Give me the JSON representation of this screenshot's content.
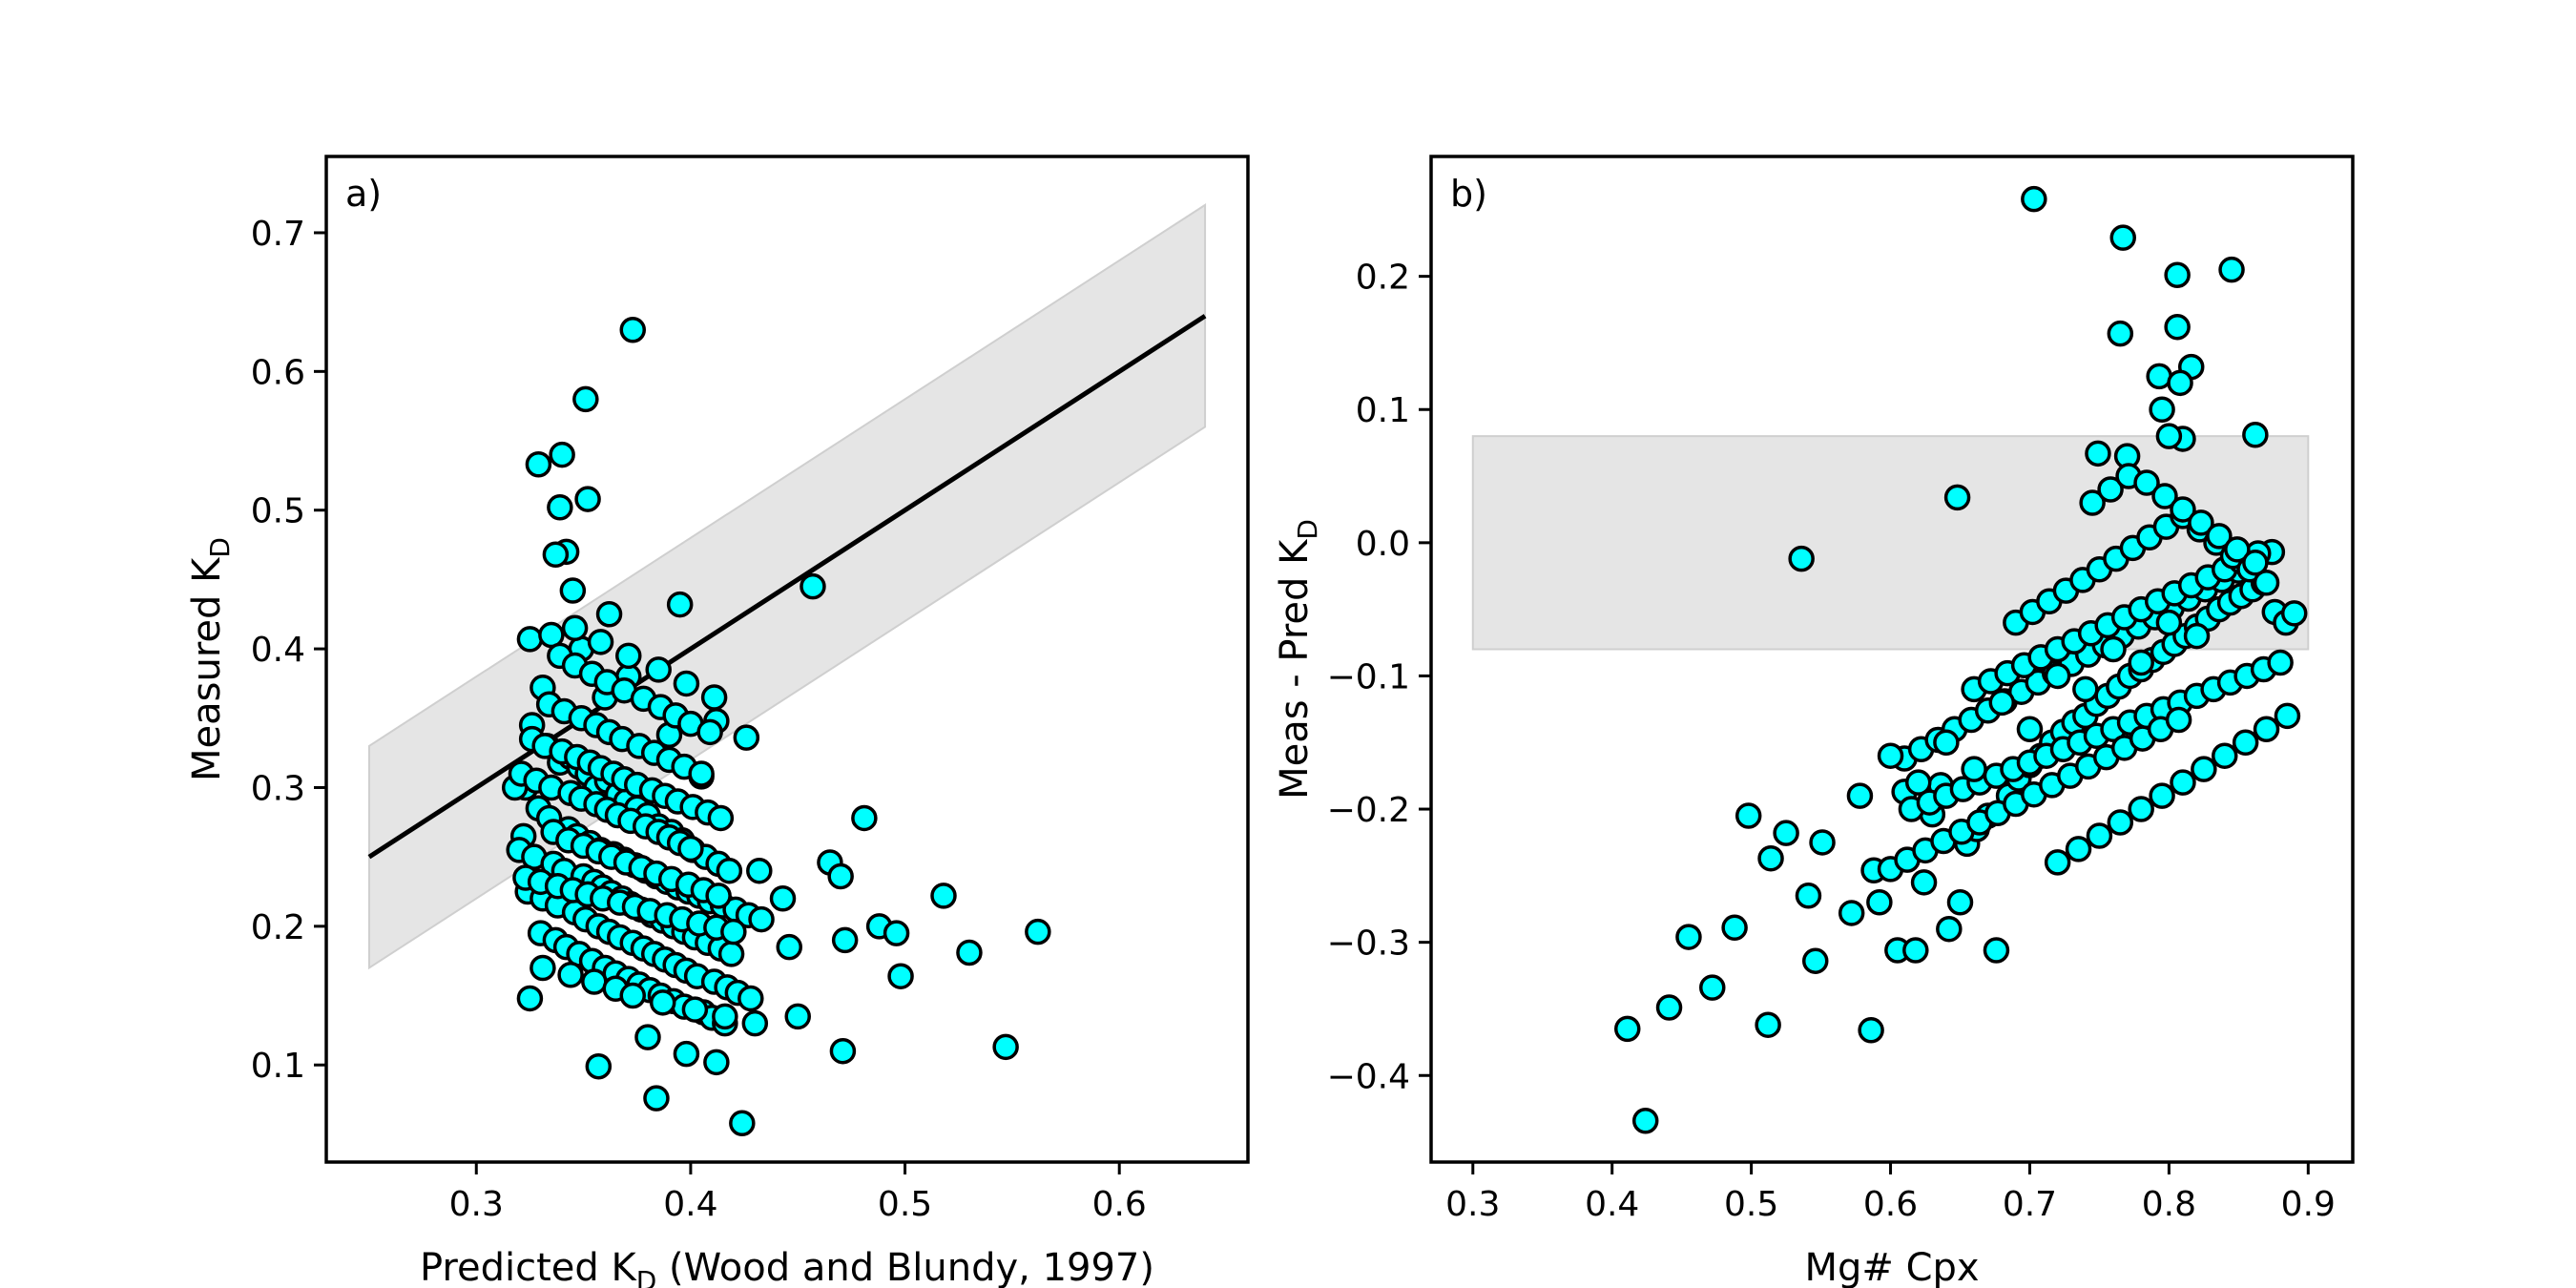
{
  "chart_data": [
    {
      "type": "scatter",
      "panel_label": "a)",
      "xlabel": "Predicted K",
      "xlabel_sub": "D",
      "xlabel_suffix": " (Wood and Blundy, 1997)",
      "ylabel": "Measured K",
      "ylabel_sub": "D",
      "xlim": [
        0.23,
        0.66
      ],
      "ylim": [
        0.03,
        0.755
      ],
      "xticks": [
        0.3,
        0.4,
        0.5,
        0.6
      ],
      "yticks": [
        0.1,
        0.2,
        0.3,
        0.4,
        0.5,
        0.6,
        0.7
      ],
      "xtick_labels": [
        "0.3",
        "0.4",
        "0.5",
        "0.6"
      ],
      "ytick_labels": [
        "0.1",
        "0.2",
        "0.3",
        "0.4",
        "0.5",
        "0.6",
        "0.7"
      ],
      "grid": false,
      "colors": {
        "marker": "#00ffff",
        "edge": "#000000",
        "band": "#e5e5e5",
        "line": "#000000"
      },
      "reference_line": {
        "x": [
          0.25,
          0.64
        ],
        "y": [
          0.25,
          0.64
        ]
      },
      "band": {
        "x": [
          0.25,
          0.64
        ],
        "lower": [
          0.17,
          0.56
        ],
        "upper": [
          0.33,
          0.72
        ]
      },
      "x": [
        0.373,
        0.351,
        0.34,
        0.329,
        0.352,
        0.339,
        0.342,
        0.337,
        0.395,
        0.457,
        0.325,
        0.335,
        0.345,
        0.362,
        0.371,
        0.349,
        0.412,
        0.426,
        0.36,
        0.331,
        0.39,
        0.405,
        0.326,
        0.323,
        0.318,
        0.481,
        0.465,
        0.47,
        0.432,
        0.443,
        0.518,
        0.562,
        0.488,
        0.496,
        0.53,
        0.498,
        0.446,
        0.472,
        0.45,
        0.547,
        0.471,
        0.424,
        0.384,
        0.357,
        0.38,
        0.398,
        0.412,
        0.325,
        0.322,
        0.333,
        0.339,
        0.344,
        0.348,
        0.352,
        0.356,
        0.361,
        0.366,
        0.37,
        0.375,
        0.38,
        0.385,
        0.391,
        0.396,
        0.401,
        0.407,
        0.413,
        0.418,
        0.329,
        0.334,
        0.343,
        0.347,
        0.353,
        0.358,
        0.364,
        0.369,
        0.374,
        0.379,
        0.384,
        0.389,
        0.394,
        0.399,
        0.404,
        0.409,
        0.415,
        0.421,
        0.427,
        0.433,
        0.32,
        0.327,
        0.336,
        0.341,
        0.35,
        0.355,
        0.359,
        0.363,
        0.368,
        0.372,
        0.377,
        0.382,
        0.387,
        0.392,
        0.397,
        0.402,
        0.408,
        0.414,
        0.419,
        0.324,
        0.331,
        0.338,
        0.346,
        0.351,
        0.357,
        0.362,
        0.367,
        0.373,
        0.378,
        0.383,
        0.388,
        0.393,
        0.398,
        0.403,
        0.411,
        0.417,
        0.422,
        0.428,
        0.33,
        0.337,
        0.342,
        0.348,
        0.354,
        0.36,
        0.365,
        0.371,
        0.376,
        0.381,
        0.386,
        0.392,
        0.397,
        0.406,
        0.41,
        0.416,
        0.321,
        0.328,
        0.335,
        0.344,
        0.349,
        0.356,
        0.361,
        0.366,
        0.372,
        0.379,
        0.385,
        0.39,
        0.395,
        0.4,
        0.326,
        0.332,
        0.34,
        0.347,
        0.353,
        0.358,
        0.364,
        0.369,
        0.375,
        0.382,
        0.388,
        0.394,
        0.401,
        0.408,
        0.414,
        0.323,
        0.33,
        0.338,
        0.345,
        0.352,
        0.359,
        0.367,
        0.374,
        0.381,
        0.389,
        0.396,
        0.404,
        0.412,
        0.42,
        0.336,
        0.343,
        0.35,
        0.357,
        0.363,
        0.37,
        0.377,
        0.384,
        0.391,
        0.399,
        0.406,
        0.413,
        0.334,
        0.341,
        0.349,
        0.356,
        0.362,
        0.368,
        0.376,
        0.383,
        0.39,
        0.397,
        0.405,
        0.339,
        0.346,
        0.354,
        0.361,
        0.369,
        0.378,
        0.386,
        0.393,
        0.4,
        0.409,
        0.331,
        0.344,
        0.355,
        0.365,
        0.373,
        0.387,
        0.402,
        0.416,
        0.43,
        0.346,
        0.358,
        0.371,
        0.385,
        0.398,
        0.411
      ],
      "y": [
        0.63,
        0.58,
        0.54,
        0.533,
        0.508,
        0.502,
        0.47,
        0.468,
        0.432,
        0.445,
        0.407,
        0.41,
        0.442,
        0.425,
        0.38,
        0.4,
        0.348,
        0.336,
        0.365,
        0.372,
        0.338,
        0.308,
        0.345,
        0.3,
        0.3,
        0.278,
        0.246,
        0.236,
        0.24,
        0.22,
        0.222,
        0.196,
        0.2,
        0.195,
        0.181,
        0.164,
        0.185,
        0.19,
        0.135,
        0.113,
        0.11,
        0.058,
        0.076,
        0.099,
        0.12,
        0.108,
        0.102,
        0.148,
        0.265,
        0.33,
        0.318,
        0.322,
        0.315,
        0.31,
        0.3,
        0.305,
        0.295,
        0.29,
        0.285,
        0.28,
        0.272,
        0.268,
        0.262,
        0.255,
        0.25,
        0.245,
        0.24,
        0.285,
        0.278,
        0.27,
        0.265,
        0.26,
        0.255,
        0.252,
        0.248,
        0.244,
        0.24,
        0.236,
        0.232,
        0.228,
        0.225,
        0.222,
        0.218,
        0.215,
        0.212,
        0.208,
        0.205,
        0.255,
        0.25,
        0.245,
        0.24,
        0.236,
        0.232,
        0.228,
        0.224,
        0.22,
        0.216,
        0.212,
        0.208,
        0.204,
        0.2,
        0.196,
        0.192,
        0.188,
        0.184,
        0.18,
        0.225,
        0.22,
        0.215,
        0.21,
        0.205,
        0.2,
        0.196,
        0.192,
        0.188,
        0.184,
        0.18,
        0.176,
        0.172,
        0.168,
        0.164,
        0.16,
        0.156,
        0.152,
        0.148,
        0.195,
        0.19,
        0.185,
        0.18,
        0.175,
        0.17,
        0.166,
        0.162,
        0.158,
        0.154,
        0.15,
        0.146,
        0.142,
        0.138,
        0.134,
        0.13,
        0.31,
        0.305,
        0.3,
        0.296,
        0.292,
        0.288,
        0.284,
        0.28,
        0.276,
        0.272,
        0.268,
        0.264,
        0.26,
        0.256,
        0.335,
        0.33,
        0.326,
        0.322,
        0.318,
        0.314,
        0.31,
        0.306,
        0.302,
        0.298,
        0.294,
        0.29,
        0.286,
        0.282,
        0.278,
        0.235,
        0.232,
        0.229,
        0.226,
        0.223,
        0.22,
        0.217,
        0.214,
        0.211,
        0.208,
        0.205,
        0.202,
        0.199,
        0.196,
        0.268,
        0.262,
        0.258,
        0.254,
        0.25,
        0.246,
        0.242,
        0.238,
        0.234,
        0.23,
        0.226,
        0.222,
        0.36,
        0.355,
        0.35,
        0.345,
        0.34,
        0.335,
        0.33,
        0.325,
        0.32,
        0.315,
        0.31,
        0.395,
        0.388,
        0.382,
        0.376,
        0.37,
        0.364,
        0.358,
        0.352,
        0.346,
        0.34,
        0.17,
        0.165,
        0.16,
        0.155,
        0.15,
        0.145,
        0.14,
        0.135,
        0.13,
        0.415,
        0.405,
        0.395,
        0.385,
        0.375,
        0.365
      ]
    },
    {
      "type": "scatter",
      "panel_label": "b)",
      "xlabel": "Mg# Cpx",
      "ylabel": "Meas - Pred K",
      "ylabel_sub": "D",
      "xlim": [
        0.27,
        0.932
      ],
      "ylim": [
        -0.465,
        0.29
      ],
      "xticks": [
        0.3,
        0.4,
        0.5,
        0.6,
        0.7,
        0.8,
        0.9
      ],
      "yticks": [
        -0.4,
        -0.3,
        -0.2,
        -0.1,
        0.0,
        0.1,
        0.2
      ],
      "xtick_labels": [
        "0.3",
        "0.4",
        "0.5",
        "0.6",
        "0.7",
        "0.8",
        "0.9"
      ],
      "ytick_labels": [
        "−0.4",
        "−0.3",
        "−0.2",
        "−0.1",
        "0.0",
        "0.1",
        "0.2"
      ],
      "grid": false,
      "colors": {
        "marker": "#00ffff",
        "edge": "#000000",
        "band": "#e5e5e5"
      },
      "band": {
        "x": [
          0.3,
          0.9
        ],
        "lower": [
          -0.08,
          -0.08
        ],
        "upper": [
          0.08,
          0.08
        ]
      },
      "x": [
        0.703,
        0.767,
        0.845,
        0.806,
        0.806,
        0.765,
        0.816,
        0.793,
        0.808,
        0.81,
        0.862,
        0.795,
        0.8,
        0.749,
        0.77,
        0.648,
        0.536,
        0.411,
        0.424,
        0.441,
        0.455,
        0.472,
        0.488,
        0.498,
        0.512,
        0.514,
        0.525,
        0.541,
        0.546,
        0.551,
        0.572,
        0.578,
        0.586,
        0.588,
        0.592,
        0.605,
        0.61,
        0.618,
        0.624,
        0.63,
        0.636,
        0.642,
        0.65,
        0.655,
        0.662,
        0.67,
        0.676,
        0.685,
        0.692,
        0.7,
        0.708,
        0.716,
        0.724,
        0.732,
        0.74,
        0.748,
        0.756,
        0.764,
        0.772,
        0.78,
        0.788,
        0.796,
        0.804,
        0.812,
        0.82,
        0.828,
        0.836,
        0.844,
        0.852,
        0.86,
        0.868,
        0.876,
        0.884,
        0.89,
        0.61,
        0.622,
        0.634,
        0.646,
        0.658,
        0.67,
        0.682,
        0.694,
        0.706,
        0.718,
        0.73,
        0.742,
        0.754,
        0.766,
        0.778,
        0.79,
        0.802,
        0.814,
        0.826,
        0.838,
        0.85,
        0.862,
        0.874,
        0.615,
        0.628,
        0.64,
        0.652,
        0.664,
        0.676,
        0.688,
        0.7,
        0.712,
        0.724,
        0.736,
        0.748,
        0.76,
        0.772,
        0.784,
        0.796,
        0.808,
        0.82,
        0.832,
        0.844,
        0.856,
        0.868,
        0.88,
        0.66,
        0.672,
        0.684,
        0.696,
        0.708,
        0.72,
        0.732,
        0.744,
        0.756,
        0.768,
        0.78,
        0.792,
        0.804,
        0.816,
        0.828,
        0.84,
        0.852,
        0.864,
        0.69,
        0.702,
        0.714,
        0.726,
        0.738,
        0.75,
        0.762,
        0.774,
        0.786,
        0.798,
        0.81,
        0.822,
        0.834,
        0.846,
        0.858,
        0.87,
        0.72,
        0.735,
        0.75,
        0.765,
        0.78,
        0.795,
        0.81,
        0.825,
        0.84,
        0.855,
        0.87,
        0.885,
        0.6,
        0.612,
        0.625,
        0.638,
        0.651,
        0.664,
        0.677,
        0.69,
        0.703,
        0.716,
        0.729,
        0.742,
        0.755,
        0.768,
        0.781,
        0.794,
        0.807,
        0.745,
        0.758,
        0.771,
        0.784,
        0.797,
        0.81,
        0.823,
        0.836,
        0.849,
        0.862,
        0.6,
        0.62,
        0.64,
        0.66,
        0.68,
        0.7,
        0.72,
        0.74,
        0.76,
        0.78,
        0.8,
        0.82
      ],
      "y": [
        0.258,
        0.229,
        0.205,
        0.201,
        0.162,
        0.157,
        0.132,
        0.125,
        0.12,
        0.078,
        0.081,
        0.1,
        0.08,
        0.067,
        0.065,
        0.034,
        -0.012,
        -0.365,
        -0.434,
        -0.349,
        -0.296,
        -0.334,
        -0.289,
        -0.205,
        -0.362,
        -0.237,
        -0.218,
        -0.265,
        -0.314,
        -0.225,
        -0.278,
        -0.19,
        -0.366,
        -0.246,
        -0.27,
        -0.306,
        -0.187,
        -0.306,
        -0.255,
        -0.204,
        -0.182,
        -0.29,
        -0.27,
        -0.226,
        -0.215,
        -0.205,
        -0.306,
        -0.19,
        -0.177,
        -0.167,
        -0.16,
        -0.15,
        -0.142,
        -0.135,
        -0.13,
        -0.121,
        -0.115,
        -0.108,
        -0.1,
        -0.095,
        -0.088,
        -0.082,
        -0.076,
        -0.07,
        -0.063,
        -0.057,
        -0.05,
        -0.045,
        -0.04,
        -0.035,
        -0.03,
        -0.052,
        -0.06,
        -0.053,
        -0.162,
        -0.155,
        -0.148,
        -0.14,
        -0.133,
        -0.126,
        -0.119,
        -0.112,
        -0.105,
        -0.098,
        -0.091,
        -0.084,
        -0.077,
        -0.07,
        -0.063,
        -0.056,
        -0.049,
        -0.042,
        -0.035,
        -0.028,
        -0.021,
        -0.014,
        -0.007,
        -0.2,
        -0.195,
        -0.19,
        -0.185,
        -0.18,
        -0.175,
        -0.17,
        -0.165,
        -0.16,
        -0.155,
        -0.15,
        -0.145,
        -0.14,
        -0.135,
        -0.13,
        -0.125,
        -0.12,
        -0.115,
        -0.11,
        -0.105,
        -0.1,
        -0.095,
        -0.09,
        -0.11,
        -0.104,
        -0.098,
        -0.092,
        -0.086,
        -0.08,
        -0.074,
        -0.068,
        -0.062,
        -0.056,
        -0.05,
        -0.044,
        -0.038,
        -0.032,
        -0.026,
        -0.02,
        -0.014,
        -0.008,
        -0.06,
        -0.052,
        -0.044,
        -0.036,
        -0.028,
        -0.02,
        -0.012,
        -0.004,
        0.004,
        0.012,
        0.02,
        0.01,
        0.0,
        -0.01,
        -0.02,
        -0.03,
        -0.24,
        -0.23,
        -0.22,
        -0.21,
        -0.2,
        -0.19,
        -0.18,
        -0.17,
        -0.16,
        -0.15,
        -0.14,
        -0.13,
        -0.245,
        -0.238,
        -0.231,
        -0.224,
        -0.217,
        -0.21,
        -0.203,
        -0.196,
        -0.189,
        -0.182,
        -0.175,
        -0.168,
        -0.161,
        -0.154,
        -0.147,
        -0.14,
        -0.133,
        0.03,
        0.04,
        0.05,
        0.045,
        0.035,
        0.025,
        0.015,
        0.005,
        -0.005,
        -0.015,
        -0.16,
        -0.18,
        -0.15,
        -0.17,
        -0.12,
        -0.14,
        -0.1,
        -0.11,
        -0.08,
        -0.09,
        -0.06,
        -0.07
      ]
    }
  ]
}
